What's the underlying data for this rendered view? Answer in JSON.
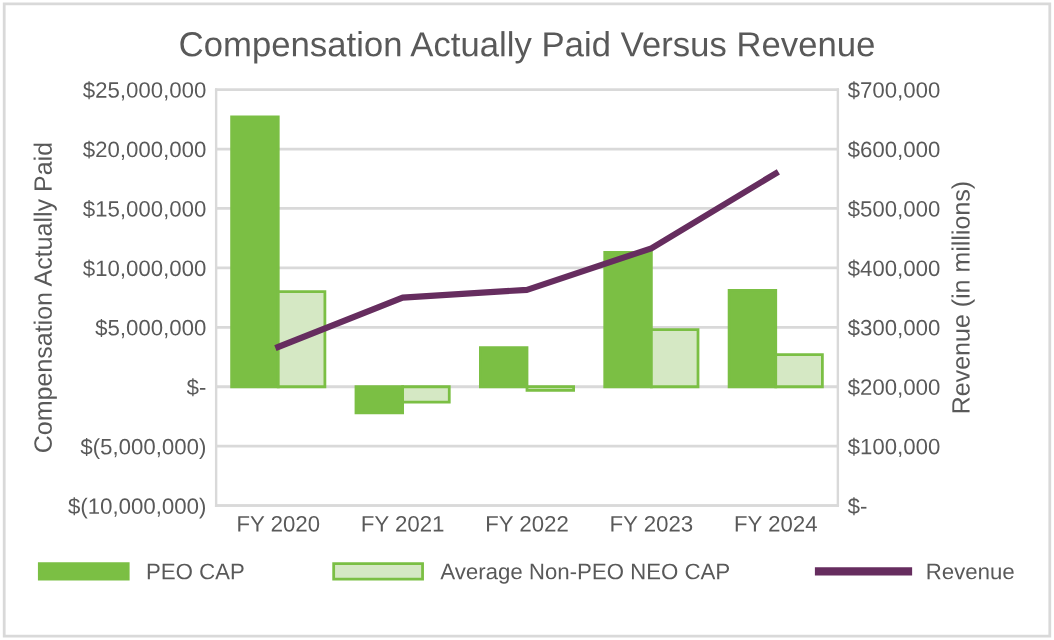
{
  "chart_data": {
    "type": "bar",
    "title": "Compensation Actually Paid Versus Revenue",
    "ylabel": "Compensation Actually Paid",
    "y2label": "Revenue (in millions)",
    "categories": [
      "FY 2020",
      "FY 2021",
      "FY 2022",
      "FY 2023",
      "FY 2024"
    ],
    "series": [
      {
        "name": "PEO CAP",
        "color": "#7bbf44",
        "values": [
          22700000,
          -2200000,
          3300000,
          11300000,
          8100000
        ]
      },
      {
        "name": "Average Non-PEO NEO CAP",
        "color": "#d5e8c4",
        "values": [
          8000000,
          -1300000,
          -300000,
          4800000,
          2700000
        ]
      },
      {
        "name": "Revenue",
        "type": "line",
        "axis": "y2",
        "color": "#662d5f",
        "values": [
          267000,
          350000,
          363000,
          433000,
          559000
        ]
      }
    ],
    "ylim": [
      -10000000,
      25000000
    ],
    "yticks": [
      {
        "value": -10000000,
        "label": "$(10,000,000)"
      },
      {
        "value": -5000000,
        "label": "$(5,000,000)"
      },
      {
        "value": 0,
        "label": "$-"
      },
      {
        "value": 5000000,
        "label": "$5,000,000"
      },
      {
        "value": 10000000,
        "label": "$10,000,000"
      },
      {
        "value": 15000000,
        "label": "$15,000,000"
      },
      {
        "value": 20000000,
        "label": "$20,000,000"
      },
      {
        "value": 25000000,
        "label": "$25,000,000"
      }
    ],
    "y2lim": [
      0,
      700000
    ],
    "y2ticks": [
      {
        "value": 0,
        "label": "$-"
      },
      {
        "value": 100000,
        "label": "$100,000"
      },
      {
        "value": 200000,
        "label": "$200,000"
      },
      {
        "value": 300000,
        "label": "$300,000"
      },
      {
        "value": 400000,
        "label": "$400,000"
      },
      {
        "value": 500000,
        "label": "$500,000"
      },
      {
        "value": 600000,
        "label": "$600,000"
      },
      {
        "value": 700000,
        "label": "$700,000"
      }
    ],
    "grid": "y",
    "legend": "bottom"
  }
}
